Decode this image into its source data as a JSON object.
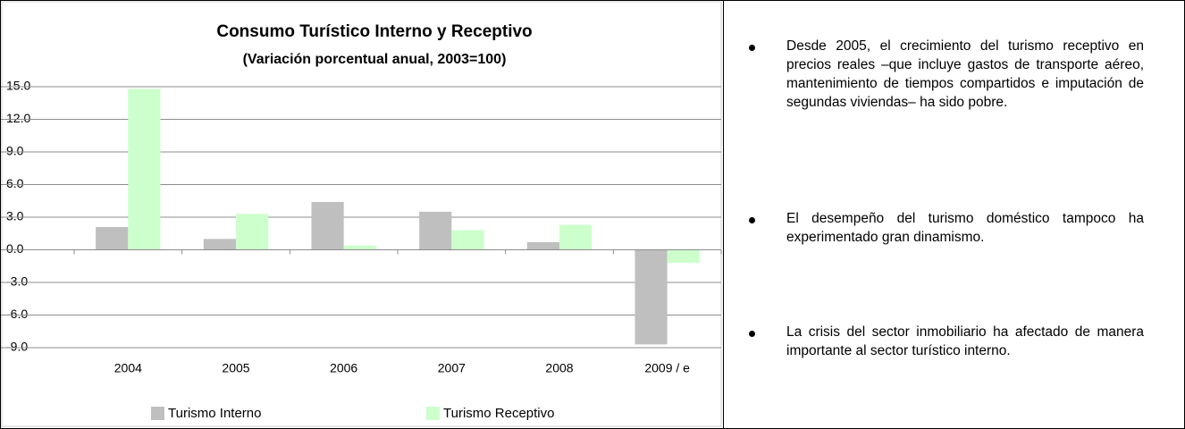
{
  "chart_data": {
    "type": "bar",
    "title": "Consumo Turístico Interno y Receptivo",
    "subtitle": "(Variación porcentual anual, 2003=100)",
    "categories": [
      "2004",
      "2005",
      "2006",
      "2007",
      "2008",
      "2009 / e"
    ],
    "series": [
      {
        "name": "Turismo Interno",
        "color": "#bfbfbf",
        "values": [
          2.1,
          1.0,
          4.4,
          3.5,
          0.7,
          -8.7
        ]
      },
      {
        "name": "Turismo Receptivo",
        "color": "#ccffcc",
        "values": [
          14.8,
          3.3,
          0.4,
          1.8,
          2.3,
          -1.2
        ]
      }
    ],
    "ylim": [
      -9,
      15
    ],
    "yticks": [
      {
        "value": -9,
        "label": "-9.0"
      },
      {
        "value": -6,
        "label": "-6.0"
      },
      {
        "value": -3,
        "label": "-3.0"
      },
      {
        "value": 0,
        "label": "0.0"
      },
      {
        "value": 3,
        "label": "3.0"
      },
      {
        "value": 6,
        "label": "6.0"
      },
      {
        "value": 9,
        "label": "9.0"
      },
      {
        "value": 12,
        "label": "12.0"
      },
      {
        "value": 15,
        "label": "15.0"
      }
    ],
    "grid": true,
    "legend": "bottom"
  },
  "bullets": [
    "Desde 2005, el crecimiento del turismo receptivo en precios reales –que incluye gastos de transporte aéreo, mantenimiento de tiempos compartidos e imputación de segundas viviendas– ha sido pobre.",
    "El desempeño del turismo doméstico tampoco ha experimentado gran dinamismo.",
    "La crisis del sector inmobiliario ha afectado de manera importante al sector turístico interno."
  ]
}
